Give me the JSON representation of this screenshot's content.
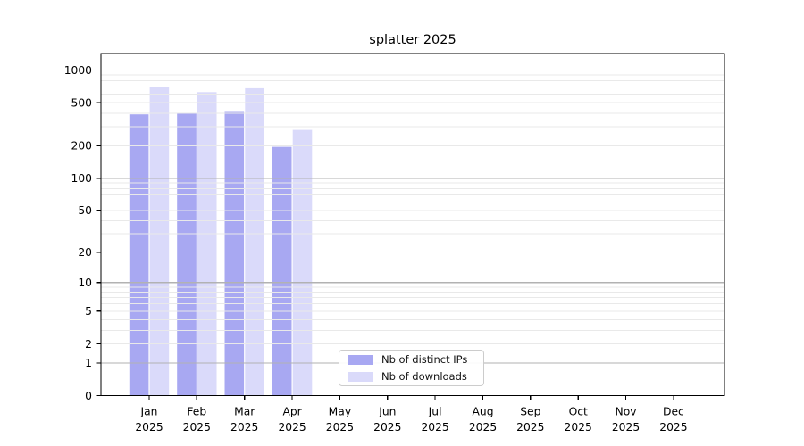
{
  "title": "splatter 2025",
  "chart_data": {
    "type": "bar",
    "title": "splatter 2025",
    "categories": [
      "Jan 2025",
      "Feb 2025",
      "Mar 2025",
      "Apr 2025",
      "May 2025",
      "Jun 2025",
      "Jul 2025",
      "Aug 2025",
      "Sep 2025",
      "Oct 2025",
      "Nov 2025",
      "Dec 2025"
    ],
    "series": [
      {
        "name": "Nb of distinct IPs",
        "color": "#a8a8f2",
        "values": [
          390,
          400,
          410,
          195,
          0,
          0,
          0,
          0,
          0,
          0,
          0,
          0
        ]
      },
      {
        "name": "Nb of downloads",
        "color": "#dadafa",
        "values": [
          700,
          625,
          680,
          280,
          0,
          0,
          0,
          0,
          0,
          0,
          0,
          0
        ]
      }
    ],
    "xlabel": "",
    "ylabel": "",
    "yscale": "log(1+y)",
    "y_ticks": [
      0,
      1,
      2,
      5,
      10,
      20,
      50,
      100,
      200,
      500,
      1000
    ],
    "ylim": [
      0,
      1420
    ],
    "grid": "horizontal, minor log lines light gray, decade lines darker",
    "major_grid_values": [
      1,
      10,
      100,
      1000
    ],
    "legend_position": "inside bottom-center",
    "colors": {
      "spine": "#000000",
      "major_grid": "#b2b2b2",
      "minor_grid": "#e9e9e9",
      "tick_label": "#000000",
      "background": "#ffffff"
    }
  }
}
